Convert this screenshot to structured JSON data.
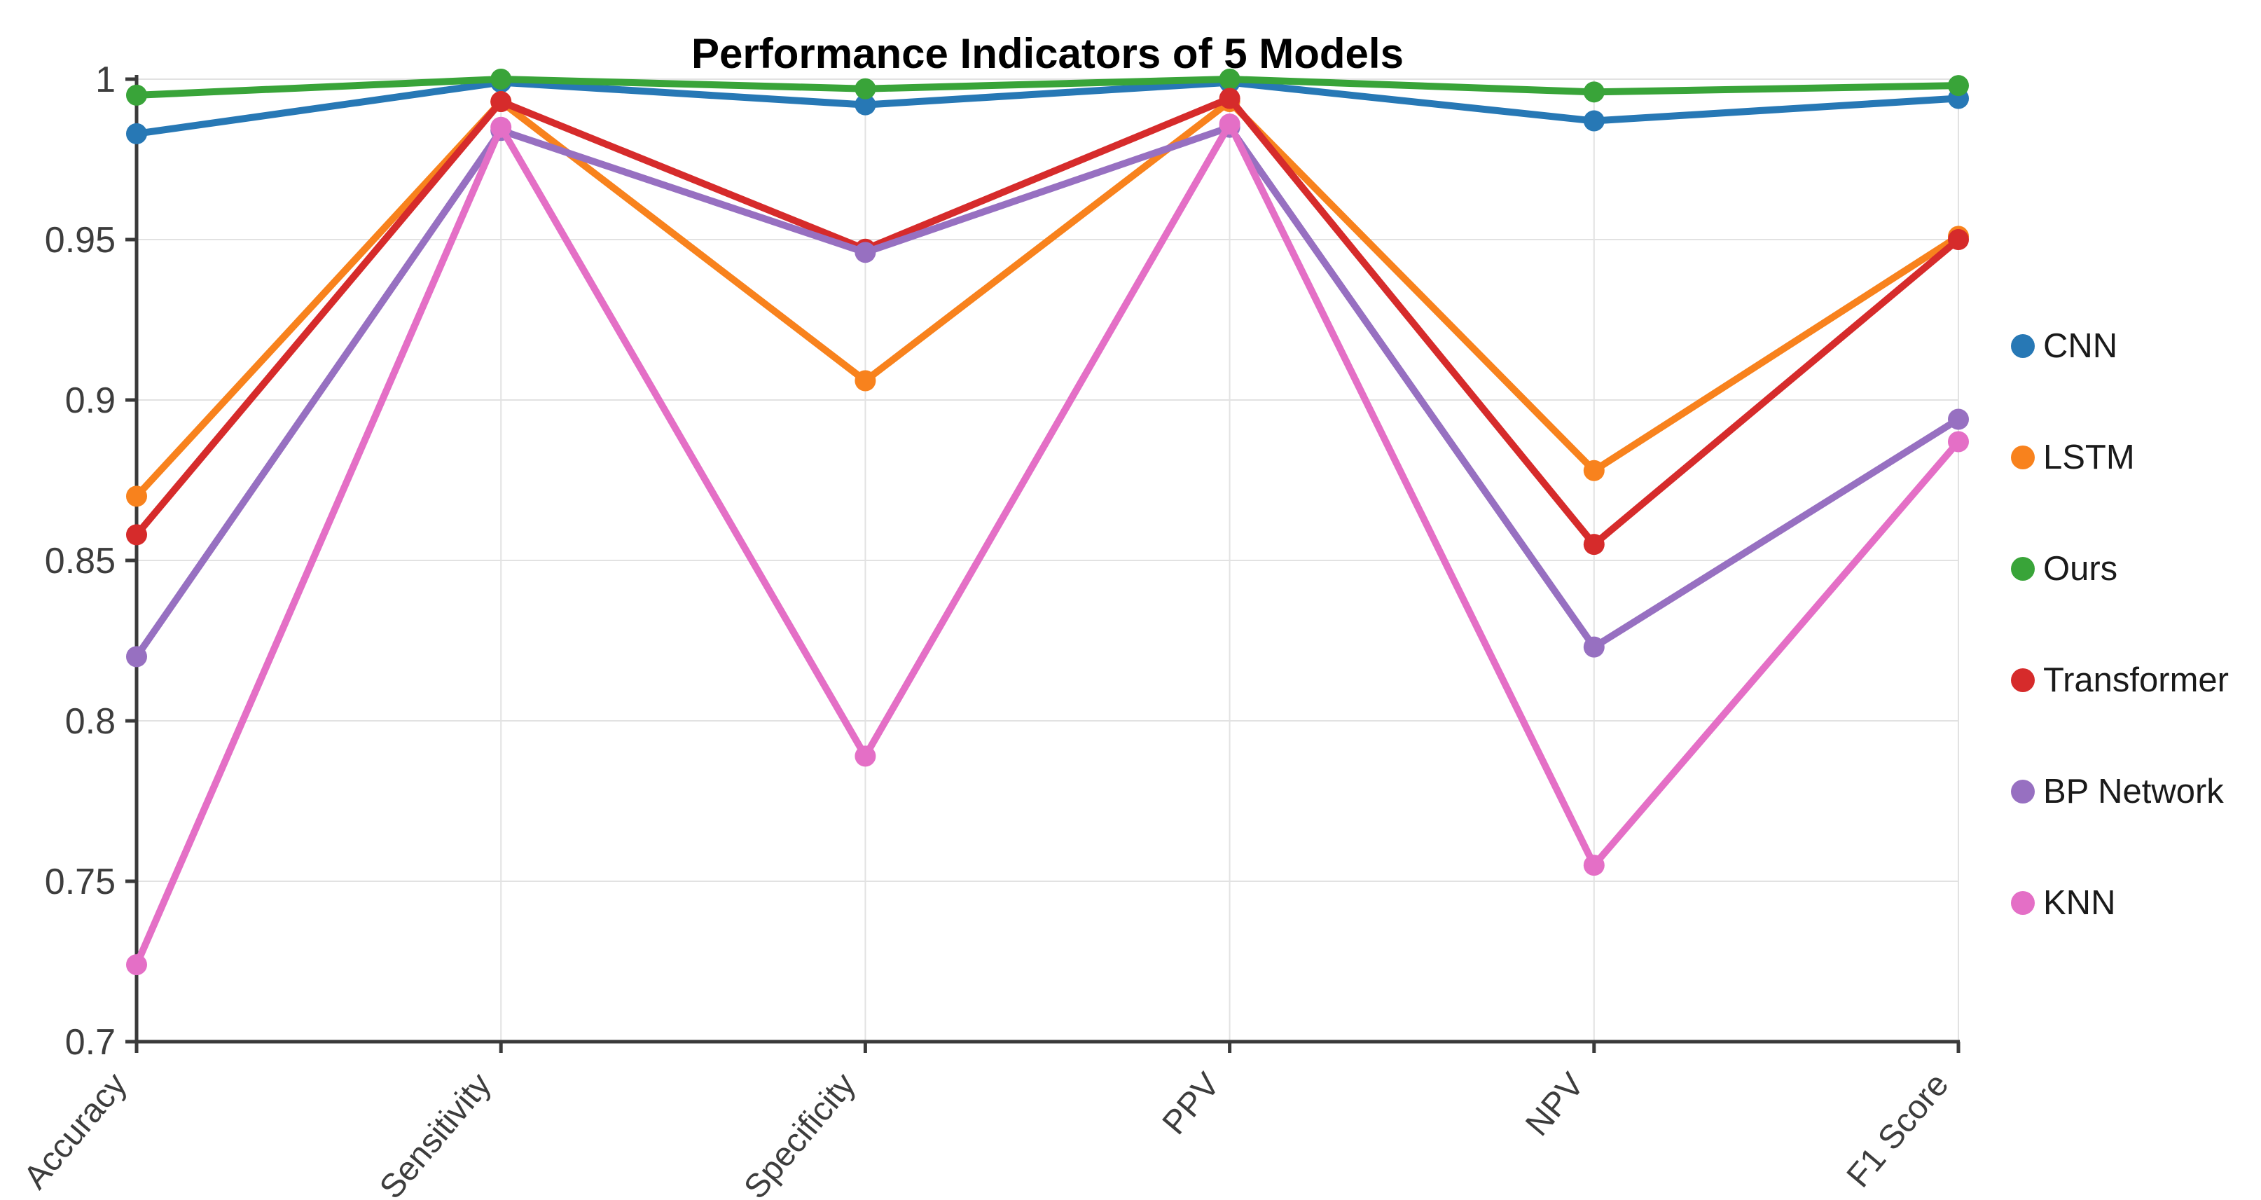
{
  "figure": {
    "title": "Performance Indicators of 5 Models"
  },
  "chart_data": {
    "type": "line",
    "title": "Performance Indicators of 5 Models",
    "categories": [
      "Accuracy",
      "Sensitivity",
      "Specificity",
      "PPV",
      "NPV",
      "F1 Score"
    ],
    "y_ticks": [
      0.7,
      0.75,
      0.8,
      0.85,
      0.9,
      0.95,
      1
    ],
    "y_tick_labels": [
      "0.7",
      "0.75",
      "0.8",
      "0.85",
      "0.9",
      "0.95",
      "1"
    ],
    "ylim": [
      0.7,
      1.0
    ],
    "grid": true,
    "legend_position": "right-outside",
    "marker": "circle",
    "series": [
      {
        "name": "CNN",
        "color": "#2778b5",
        "values": [
          0.983,
          0.999,
          0.992,
          0.999,
          0.987,
          0.994
        ]
      },
      {
        "name": "LSTM",
        "color": "#f8821d",
        "values": [
          0.87,
          0.993,
          0.906,
          0.993,
          0.878,
          0.951
        ]
      },
      {
        "name": "Ours",
        "color": "#39a439",
        "values": [
          0.995,
          1.0,
          0.997,
          1.0,
          0.996,
          0.998
        ]
      },
      {
        "name": "Transformer",
        "color": "#d62b2b",
        "values": [
          0.858,
          0.993,
          0.947,
          0.994,
          0.855,
          0.95
        ]
      },
      {
        "name": "BP Network",
        "color": "#9770c1",
        "values": [
          0.82,
          0.984,
          0.946,
          0.985,
          0.823,
          0.894
        ]
      },
      {
        "name": "KNN",
        "color": "#e46fc6",
        "values": [
          0.724,
          0.985,
          0.789,
          0.986,
          0.755,
          0.887
        ]
      }
    ],
    "axis_color": "#3a3a3a",
    "tick_label_color": "#3d3d3d",
    "gridline_color": "#e2e2e2",
    "background_color": "#ffffff"
  }
}
